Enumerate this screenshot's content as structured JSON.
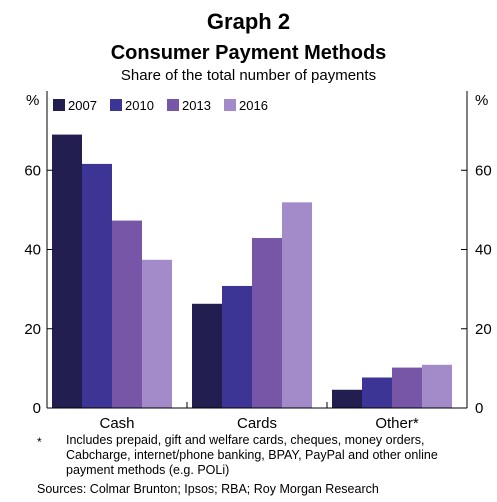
{
  "header": {
    "title": "Graph 2",
    "subtitle": "Consumer Payment Methods",
    "description": "Share of the total number of payments"
  },
  "chart_data": {
    "type": "bar",
    "categories": [
      "Cash",
      "Cards",
      "Other*"
    ],
    "series": [
      {
        "name": "2007",
        "color": "#231e50",
        "values": [
          69.0,
          26.3,
          4.6
        ]
      },
      {
        "name": "2010",
        "color": "#3d3595",
        "values": [
          61.6,
          30.8,
          7.7
        ]
      },
      {
        "name": "2013",
        "color": "#7756a8",
        "values": [
          47.3,
          42.9,
          10.2
        ]
      },
      {
        "name": "2016",
        "color": "#a38bca",
        "values": [
          37.4,
          51.9,
          10.9
        ]
      }
    ],
    "ylim": [
      0,
      80
    ],
    "yticks": [
      0,
      20,
      40,
      60
    ],
    "left_unit": "%",
    "right_unit": "%",
    "legend_position": "top-left",
    "grid": false
  },
  "footnote": {
    "marker": "*",
    "text": "Includes prepaid, gift and welfare cards, cheques, money orders, Cabcharge, internet/phone banking, BPAY, PayPal and other online payment methods (e.g. POLi)"
  },
  "sources": "Sources: Colmar Brunton; Ipsos; RBA; Roy Morgan Research"
}
